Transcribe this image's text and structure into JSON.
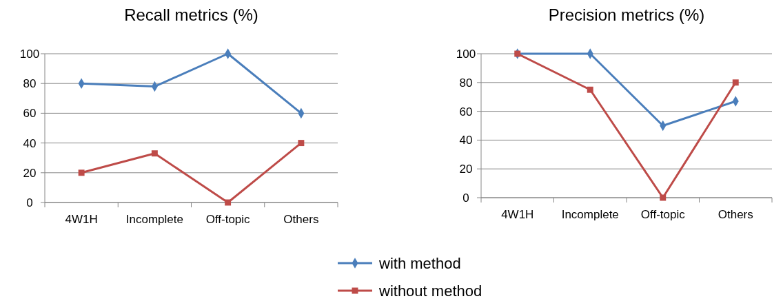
{
  "chart_data": [
    {
      "type": "line",
      "title": "Recall metrics (%)",
      "categories": [
        "4W1H",
        "Incomplete",
        "Off-topic",
        "Others"
      ],
      "series": [
        {
          "name": "with method",
          "color": "#4a7ebb",
          "marker": "diamond",
          "values": [
            80,
            78,
            100,
            60
          ]
        },
        {
          "name": "without method",
          "color": "#be4b48",
          "marker": "square",
          "values": [
            20,
            33,
            0,
            40
          ]
        }
      ],
      "ylim": [
        0,
        100
      ],
      "yticks": [
        0,
        20,
        40,
        60,
        80,
        100
      ],
      "grid": "y",
      "legend": "bottom"
    },
    {
      "type": "line",
      "title": "Precision metrics (%)",
      "categories": [
        "4W1H",
        "Incomplete",
        "Off-topic",
        "Others"
      ],
      "series": [
        {
          "name": "with method",
          "color": "#4a7ebb",
          "marker": "diamond",
          "values": [
            100,
            100,
            50,
            67
          ]
        },
        {
          "name": "without method",
          "color": "#be4b48",
          "marker": "square",
          "values": [
            100,
            75,
            0,
            80
          ]
        }
      ],
      "ylim": [
        0,
        100
      ],
      "yticks": [
        0,
        20,
        40,
        60,
        80,
        100
      ],
      "grid": "y"
    }
  ]
}
